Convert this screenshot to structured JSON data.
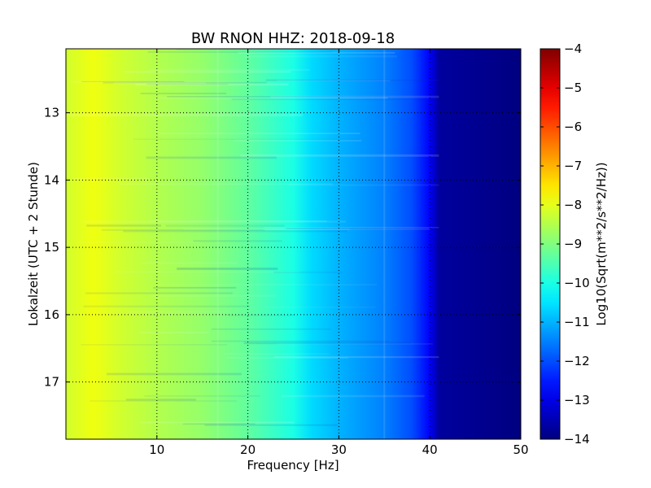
{
  "chart_data": {
    "type": "heatmap",
    "title": "BW RNON HHZ: 2018-09-18",
    "xlabel": "Frequency [Hz]",
    "ylabel": "Lokalzeit (UTC + 2 Stunde)",
    "colorbar_label": "Log10(Sqrt(m**2/s**2/Hz))",
    "xlim": [
      0,
      50
    ],
    "ylim": [
      17.85,
      12.05
    ],
    "x_ticks": [
      10,
      20,
      30,
      40,
      50
    ],
    "y_ticks": [
      13,
      14,
      15,
      16,
      17
    ],
    "color_range": [
      -14,
      -4
    ],
    "colorbar_ticks": [
      -4,
      -5,
      -6,
      -7,
      -8,
      -9,
      -10,
      -11,
      -12,
      -13,
      -14
    ],
    "colormap": "jet",
    "grid": true,
    "frequency_profile": [
      {
        "x": 0,
        "value": -8.2
      },
      {
        "x": 3,
        "value": -7.9
      },
      {
        "x": 6,
        "value": -8.2
      },
      {
        "x": 10,
        "value": -8.5
      },
      {
        "x": 15,
        "value": -8.8
      },
      {
        "x": 20,
        "value": -9.3
      },
      {
        "x": 25,
        "value": -10.0
      },
      {
        "x": 27,
        "value": -10.6
      },
      {
        "x": 30,
        "value": -11.0
      },
      {
        "x": 35,
        "value": -11.5
      },
      {
        "x": 38,
        "value": -12.0
      },
      {
        "x": 40,
        "value": -12.8
      },
      {
        "x": 41,
        "value": -13.7
      },
      {
        "x": 50,
        "value": -14.0
      }
    ]
  }
}
